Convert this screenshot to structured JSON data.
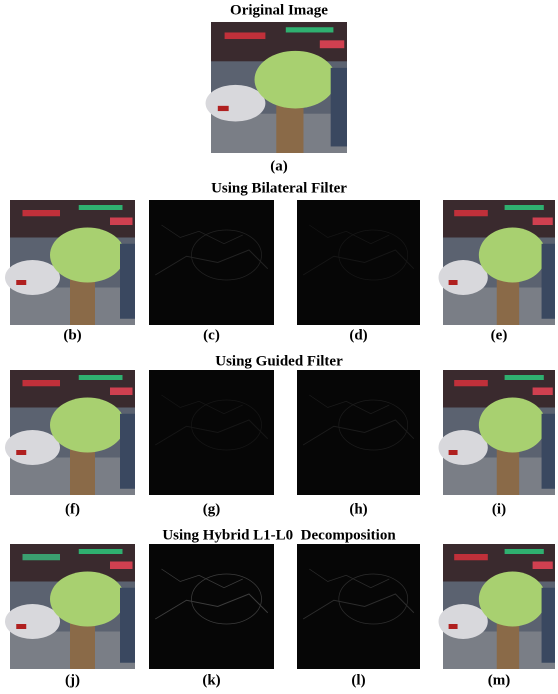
{
  "title": "Original Image",
  "original_label": "(a)",
  "sections": [
    {
      "title": "Using Bilateral Filter",
      "labels": [
        "(b)",
        "(c)",
        "(d)",
        "(e)"
      ]
    },
    {
      "title": "Using Guided Filter",
      "labels": [
        "(f)",
        "(g)",
        "(h)",
        "(i)"
      ]
    },
    {
      "title": "Using Hybrid L1-L0  Decomposition",
      "labels": [
        "(j)",
        "(k)",
        "(l)",
        "(m)"
      ]
    }
  ]
}
